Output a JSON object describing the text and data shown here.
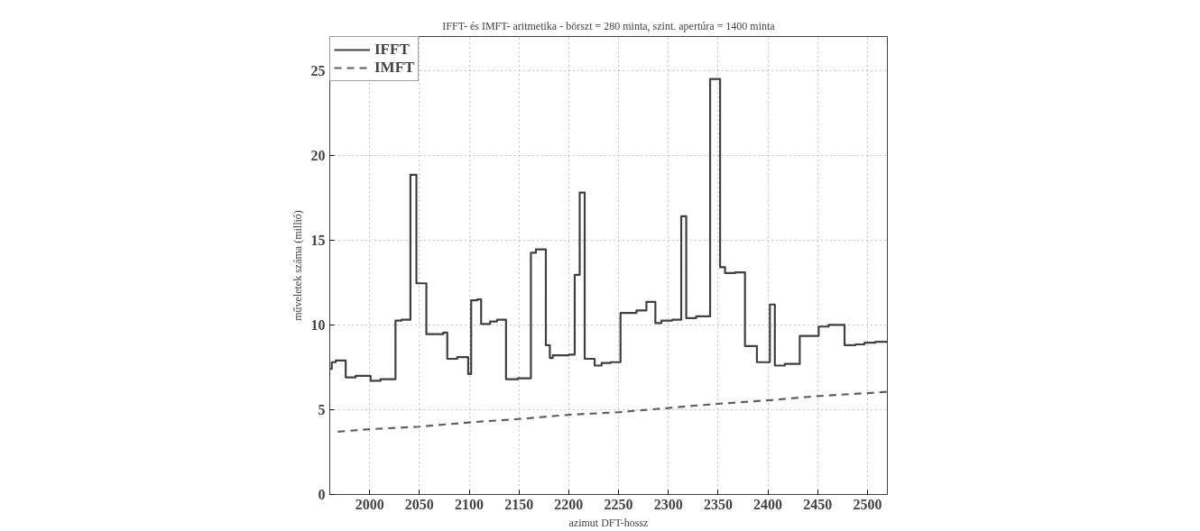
{
  "chart_data": {
    "type": "step",
    "title": "IFFT- és IMFT- aritmetika - börszt = 280 minta, szint. apertúra = 1400 minta",
    "xlabel": "azimut DFT-hossz",
    "ylabel": "műveletek száma (millió)",
    "xlim": [
      1960,
      2520
    ],
    "ylim": [
      0,
      27
    ],
    "xticks": [
      2000,
      2050,
      2100,
      2150,
      2200,
      2250,
      2300,
      2350,
      2400,
      2450,
      2500
    ],
    "yticks": [
      0,
      5,
      10,
      15,
      20,
      25
    ],
    "grid": true,
    "legend": "top left",
    "series": [
      {
        "name": "IFFT",
        "color": "#404040",
        "line_style": "solid",
        "x": [
          1960,
          1962,
          1966,
          1976,
          1986,
          2001,
          2011,
          2026,
          2032,
          2041,
          2047,
          2057,
          2074,
          2078,
          2088,
          2099,
          2102,
          2108,
          2112,
          2121,
          2128,
          2137,
          2149,
          2162,
          2167,
          2177,
          2181,
          2184,
          2200,
          2206,
          2211,
          2216,
          2226,
          2233,
          2242,
          2252,
          2268,
          2278,
          2287,
          2293,
          2304,
          2313,
          2318,
          2328,
          2342,
          2352,
          2357,
          2367,
          2377,
          2389,
          2402,
          2407,
          2417,
          2432,
          2451,
          2461,
          2477,
          2488,
          2497,
          2508,
          2520
        ],
        "values": [
          7.4,
          7.8,
          7.9,
          6.9,
          7.0,
          6.7,
          6.8,
          10.25,
          10.3,
          18.85,
          12.45,
          9.45,
          9.55,
          8.0,
          8.1,
          7.1,
          11.45,
          11.5,
          10.05,
          10.2,
          10.3,
          6.8,
          6.85,
          14.25,
          14.45,
          8.8,
          8.05,
          8.2,
          8.25,
          12.95,
          17.8,
          8.0,
          7.6,
          7.75,
          7.8,
          10.7,
          10.85,
          11.35,
          10.1,
          10.25,
          10.3,
          16.4,
          10.4,
          10.5,
          24.5,
          13.4,
          13.05,
          13.1,
          8.75,
          7.8,
          11.2,
          7.6,
          7.7,
          9.35,
          9.9,
          10.0,
          8.8,
          8.85,
          8.95,
          9.0,
          9.0
        ]
      },
      {
        "name": "IMFT",
        "type": "line",
        "color": "#606060",
        "line_style": "dashed",
        "x": [
          1968,
          2000,
          2050,
          2100,
          2150,
          2200,
          2250,
          2300,
          2350,
          2400,
          2450,
          2520
        ],
        "values": [
          3.7,
          3.85,
          4.0,
          4.25,
          4.45,
          4.7,
          4.85,
          5.1,
          5.35,
          5.55,
          5.8,
          6.05
        ]
      }
    ]
  }
}
